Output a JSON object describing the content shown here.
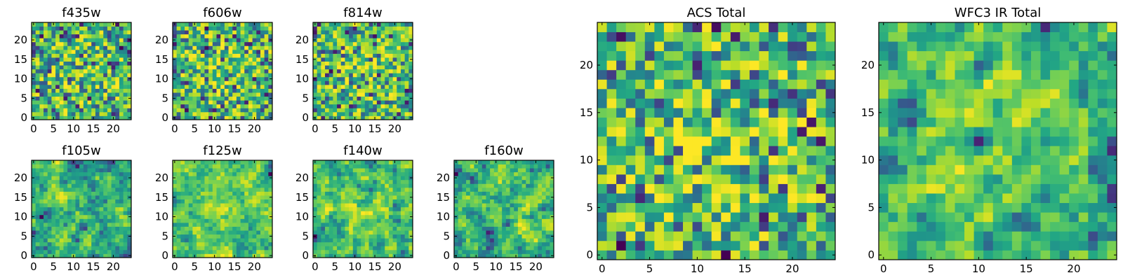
{
  "chart_data": [
    {
      "type": "heatmap",
      "title": "f435w",
      "grid_size": 25,
      "colormap": "viridis",
      "seed": 11,
      "smooth": 0,
      "hot": 0.35,
      "x_ticks": [
        "0",
        "5",
        "10",
        "15",
        "20"
      ],
      "y_ticks": [
        "0",
        "5",
        "10",
        "15",
        "20"
      ],
      "xlim": [
        0,
        25
      ],
      "ylim": [
        0,
        25
      ]
    },
    {
      "type": "heatmap",
      "title": "f606w",
      "grid_size": 25,
      "colormap": "viridis",
      "seed": 23,
      "smooth": 0,
      "hot": 0.35,
      "x_ticks": [
        "0",
        "5",
        "10",
        "15",
        "20"
      ],
      "y_ticks": [
        "0",
        "5",
        "10",
        "15",
        "20"
      ],
      "xlim": [
        0,
        25
      ],
      "ylim": [
        0,
        25
      ]
    },
    {
      "type": "heatmap",
      "title": "f814w",
      "grid_size": 25,
      "colormap": "viridis",
      "seed": 37,
      "smooth": 0,
      "hot": 0.35,
      "x_ticks": [
        "0",
        "5",
        "10",
        "15",
        "20"
      ],
      "y_ticks": [
        "0",
        "5",
        "10",
        "15",
        "20"
      ],
      "xlim": [
        0,
        25
      ],
      "ylim": [
        0,
        25
      ]
    },
    {
      "type": "heatmap",
      "title": "f105w",
      "grid_size": 25,
      "colormap": "viridis",
      "seed": 41,
      "smooth": 1,
      "hot": 0.25,
      "x_ticks": [
        "0",
        "5",
        "10",
        "15",
        "20"
      ],
      "y_ticks": [
        "0",
        "5",
        "10",
        "15",
        "20"
      ],
      "xlim": [
        0,
        25
      ],
      "ylim": [
        0,
        25
      ]
    },
    {
      "type": "heatmap",
      "title": "f125w",
      "grid_size": 25,
      "colormap": "viridis",
      "seed": 53,
      "smooth": 2,
      "hot": 0.2,
      "x_ticks": [
        "0",
        "5",
        "10",
        "15",
        "20"
      ],
      "y_ticks": [
        "0",
        "5",
        "10",
        "15",
        "20"
      ],
      "xlim": [
        0,
        25
      ],
      "ylim": [
        0,
        25
      ]
    },
    {
      "type": "heatmap",
      "title": "f140w",
      "grid_size": 25,
      "colormap": "viridis",
      "seed": 67,
      "smooth": 1,
      "hot": 0.25,
      "x_ticks": [
        "0",
        "5",
        "10",
        "15",
        "20"
      ],
      "y_ticks": [
        "0",
        "5",
        "10",
        "15",
        "20"
      ],
      "xlim": [
        0,
        25
      ],
      "ylim": [
        0,
        25
      ]
    },
    {
      "type": "heatmap",
      "title": "f160w",
      "grid_size": 25,
      "colormap": "viridis",
      "seed": 79,
      "smooth": 2,
      "hot": 0.2,
      "x_ticks": [
        "0",
        "5",
        "10",
        "15",
        "20"
      ],
      "y_ticks": [
        "0",
        "5",
        "10",
        "15",
        "20"
      ],
      "xlim": [
        0,
        25
      ],
      "ylim": [
        0,
        25
      ]
    },
    {
      "type": "heatmap",
      "title": "ACS Total",
      "grid_size": 25,
      "colormap": "viridis",
      "seed": 97,
      "smooth": 0,
      "hot": 0.6,
      "x_ticks": [
        "0",
        "5",
        "10",
        "15",
        "20"
      ],
      "y_ticks": [
        "0",
        "5",
        "10",
        "15",
        "20"
      ],
      "xlim": [
        0,
        25
      ],
      "ylim": [
        0,
        25
      ]
    },
    {
      "type": "heatmap",
      "title": "WFC3 IR Total",
      "grid_size": 25,
      "colormap": "viridis",
      "seed": 113,
      "smooth": 1,
      "hot": 0.5,
      "x_ticks": [
        "0",
        "5",
        "10",
        "15",
        "20"
      ],
      "y_ticks": [
        "0",
        "5",
        "10",
        "15",
        "20"
      ],
      "xlim": [
        0,
        25
      ],
      "ylim": [
        0,
        25
      ]
    }
  ]
}
